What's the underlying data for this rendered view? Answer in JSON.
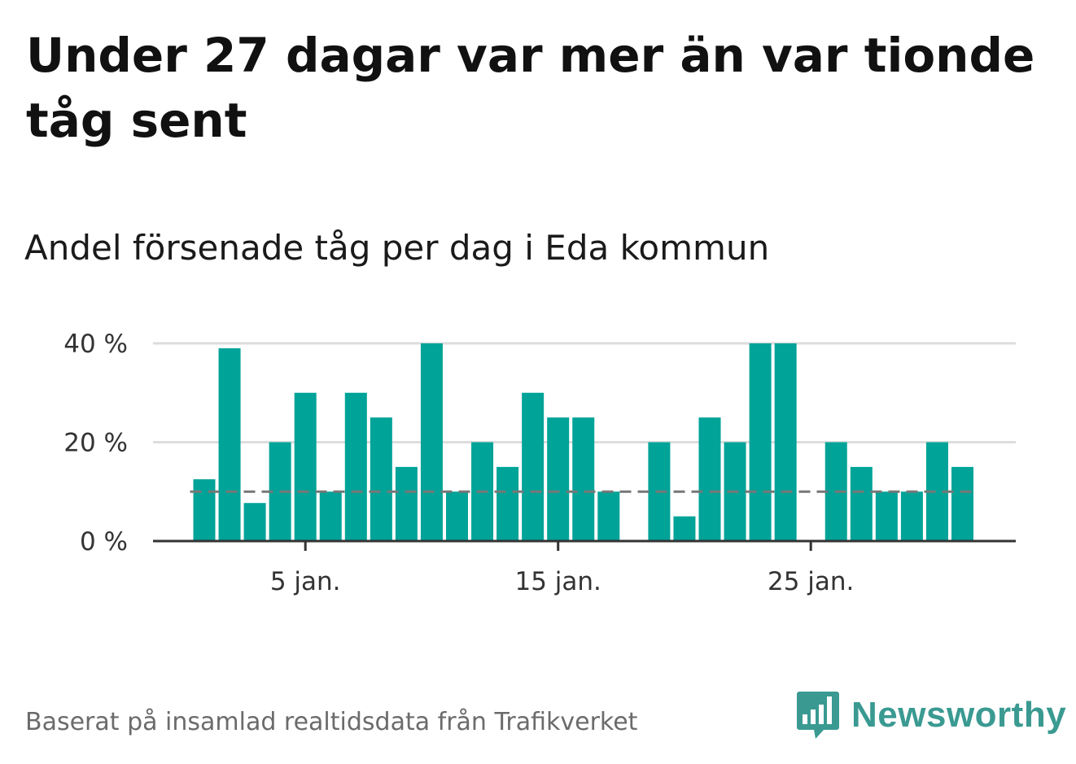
{
  "title": "Under 27 dagar var mer än var tionde tåg sent",
  "subtitle": "Andel försenade tåg per dag i Eda kommun",
  "footer": "Baserat på insamlad realtidsdata från Trafikverket",
  "brand": {
    "name": "Newsworthy",
    "color": "#3a9a92",
    "icon": "bar-chart-speech-bubble-icon"
  },
  "colors": {
    "bar": "#00a398",
    "grid": "#dddddd",
    "axis": "#333333",
    "reference": "#777777"
  },
  "chart_data": {
    "type": "bar",
    "x": [
      1,
      2,
      3,
      4,
      5,
      6,
      7,
      8,
      9,
      10,
      11,
      12,
      13,
      14,
      15,
      16,
      17,
      18,
      19,
      20,
      21,
      22,
      23,
      24,
      25,
      26,
      27,
      28,
      29,
      30,
      31
    ],
    "values": [
      12.5,
      39,
      7.7,
      20,
      30,
      10,
      30,
      25,
      15,
      40,
      10,
      20,
      15,
      30,
      25,
      25,
      10,
      null,
      20,
      5,
      25,
      20,
      40,
      40,
      null,
      20,
      15,
      10,
      10,
      20,
      15
    ],
    "xticks": [
      5,
      15,
      25
    ],
    "xtick_labels": [
      "5 jan.",
      "15 jan.",
      "25 jan."
    ],
    "yticks": [
      0,
      20,
      40
    ],
    "ytick_labels": [
      "0 %",
      "20 %",
      "40 %"
    ],
    "ylim": [
      0,
      40
    ],
    "reference_line": 10,
    "grid": true
  }
}
